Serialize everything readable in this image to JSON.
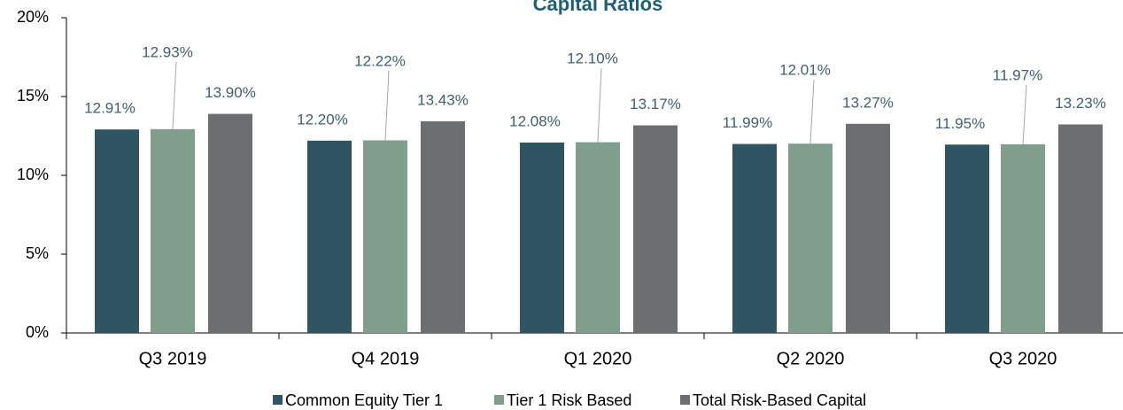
{
  "chart_data": {
    "type": "bar",
    "title": "Capital Ratios",
    "categories": [
      "Q3 2019",
      "Q4 2019",
      "Q1 2020",
      "Q2 2020",
      "Q3 2020"
    ],
    "series": [
      {
        "name": "Common Equity Tier 1",
        "color": "#2f5564",
        "values": [
          12.91,
          12.2,
          12.08,
          11.99,
          11.95
        ],
        "value_labels": [
          "12.91%",
          "12.20%",
          "12.08%",
          "11.99%",
          "11.95%"
        ]
      },
      {
        "name": "Tier 1 Risk Based",
        "color": "#7f9e8e",
        "values": [
          12.93,
          12.22,
          12.1,
          12.01,
          11.97
        ],
        "value_labels": [
          "12.93%",
          "12.22%",
          "12.10%",
          "12.01%",
          "11.97%"
        ]
      },
      {
        "name": "Total Risk-Based Capital",
        "color": "#6d6e71",
        "values": [
          13.9,
          13.43,
          13.17,
          13.27,
          13.23
        ],
        "value_labels": [
          "13.90%",
          "13.43%",
          "13.17%",
          "13.27%",
          "13.23%"
        ]
      }
    ],
    "ylim": [
      0,
      20
    ],
    "yticks": [
      {
        "value": 0,
        "label": "0%"
      },
      {
        "value": 5,
        "label": "5%"
      },
      {
        "value": 10,
        "label": "10%"
      },
      {
        "value": 15,
        "label": "15%"
      },
      {
        "value": 20,
        "label": "20%"
      }
    ],
    "legend": "bottom"
  }
}
